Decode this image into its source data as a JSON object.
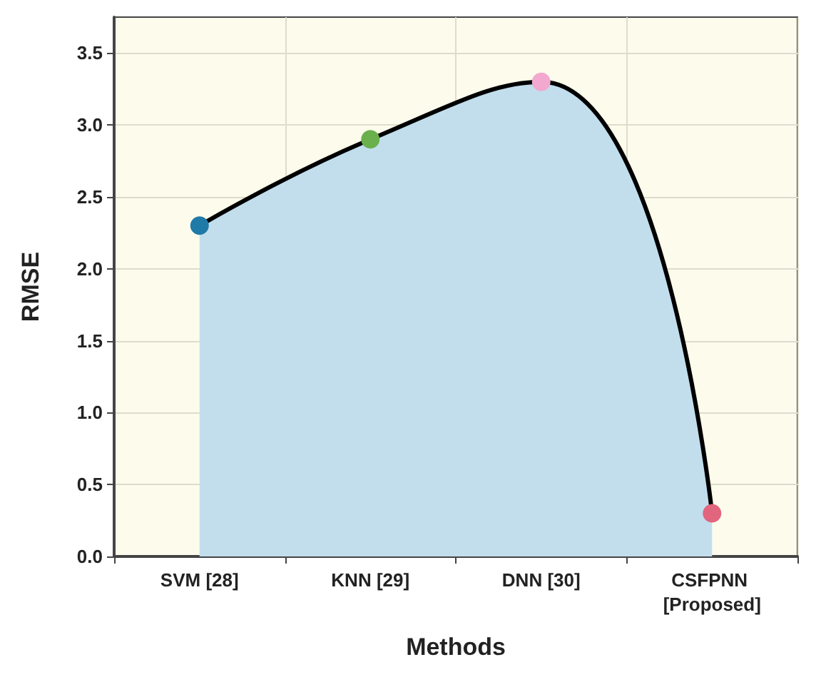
{
  "chart_data": {
    "type": "area",
    "xlabel": "Methods",
    "ylabel": "RMSE",
    "categories": [
      "SVM [28]",
      "KNN [29]",
      "DNN [30]",
      "CSFPNN [Proposed]"
    ],
    "values": [
      2.3,
      2.9,
      3.3,
      0.3
    ],
    "colors": [
      "#1f7aa8",
      "#6ab04c",
      "#f2a8cf",
      "#e2657e"
    ],
    "color": "#c2deed",
    "ylim": [
      0,
      3.75
    ],
    "yticks": [
      {
        "value": 0,
        "label": "0.0"
      },
      0.5,
      {
        "value": 1,
        "label": "1.0"
      },
      1.5,
      {
        "value": 2,
        "label": "2.0"
      },
      2.5,
      {
        "value": 3,
        "label": "3.0"
      },
      3.5
    ],
    "grid": true,
    "marker": "circle",
    "line_style": "solid"
  }
}
